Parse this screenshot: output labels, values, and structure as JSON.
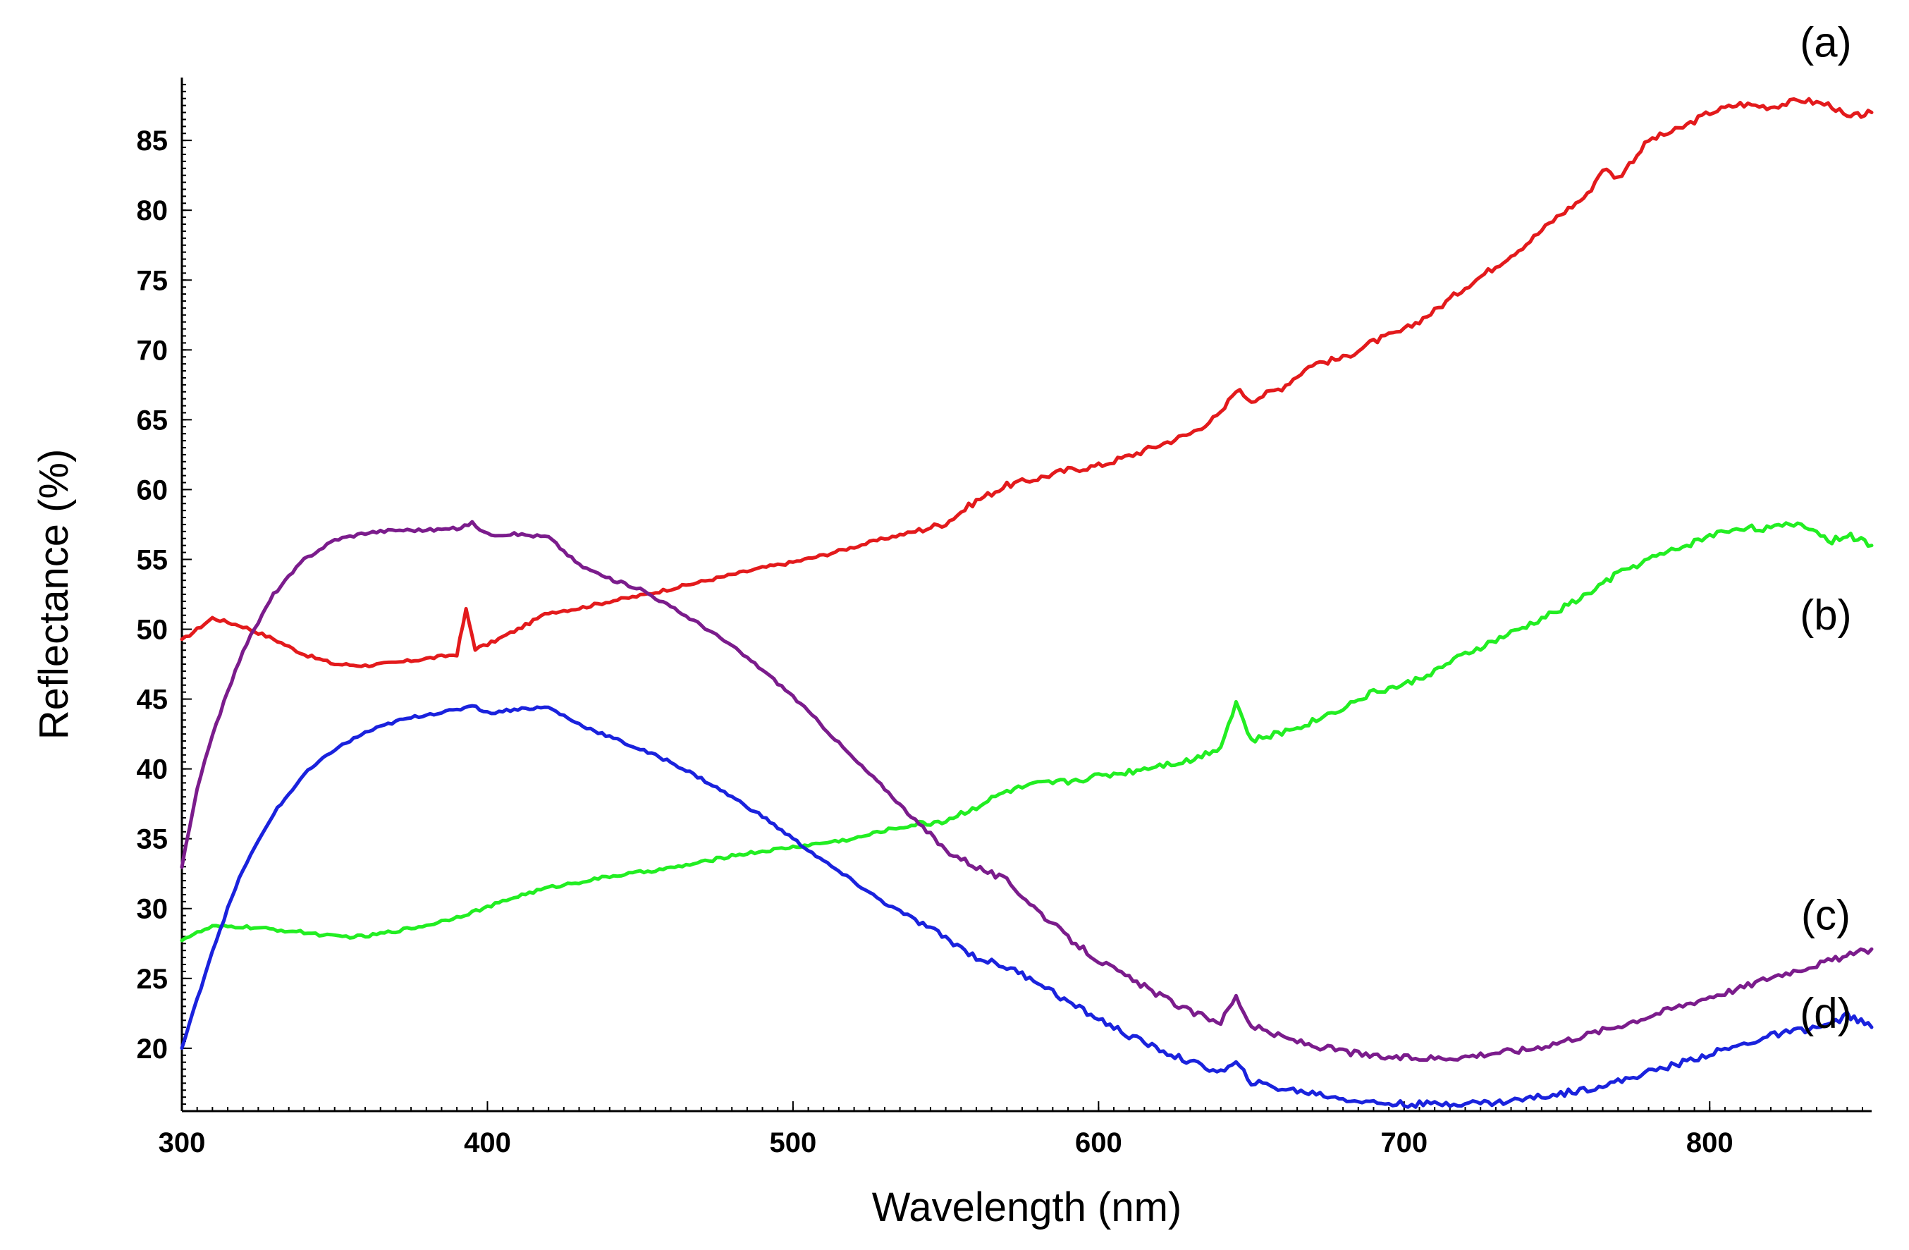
{
  "chart_data": {
    "type": "line",
    "title": "",
    "xlabel": "Wavelength (nm)",
    "ylabel": "Reflectance (%)",
    "xlim": [
      300,
      853
    ],
    "ylim": [
      15.5,
      89.5
    ],
    "xticks": [
      300,
      400,
      500,
      600,
      700,
      800
    ],
    "yticks": [
      20,
      25,
      30,
      35,
      40,
      45,
      50,
      55,
      60,
      65,
      70,
      75,
      80,
      85
    ],
    "series": [
      {
        "name": "(a)",
        "color": "#e31a1c",
        "points": [
          [
            300,
            49.2
          ],
          [
            310,
            50.8
          ],
          [
            320,
            50.2
          ],
          [
            330,
            49.3
          ],
          [
            340,
            48.2
          ],
          [
            350,
            47.5
          ],
          [
            360,
            47.4
          ],
          [
            370,
            47.6
          ],
          [
            380,
            47.9
          ],
          [
            390,
            48.2
          ],
          [
            393,
            51.4
          ],
          [
            396,
            48.6
          ],
          [
            400,
            48.9
          ],
          [
            410,
            50.0
          ],
          [
            420,
            51.2
          ],
          [
            430,
            51.5
          ],
          [
            440,
            52.0
          ],
          [
            450,
            52.4
          ],
          [
            460,
            52.9
          ],
          [
            470,
            53.4
          ],
          [
            480,
            53.9
          ],
          [
            490,
            54.4
          ],
          [
            500,
            54.8
          ],
          [
            510,
            55.3
          ],
          [
            520,
            55.9
          ],
          [
            530,
            56.5
          ],
          [
            540,
            57.0
          ],
          [
            550,
            57.6
          ],
          [
            560,
            59.2
          ],
          [
            570,
            60.3
          ],
          [
            580,
            60.8
          ],
          [
            590,
            61.4
          ],
          [
            600,
            61.7
          ],
          [
            610,
            62.4
          ],
          [
            620,
            63.2
          ],
          [
            630,
            64.0
          ],
          [
            640,
            65.4
          ],
          [
            645,
            67.2
          ],
          [
            650,
            66.4
          ],
          [
            660,
            67.3
          ],
          [
            670,
            69.0
          ],
          [
            680,
            69.4
          ],
          [
            690,
            70.6
          ],
          [
            700,
            71.4
          ],
          [
            710,
            72.8
          ],
          [
            720,
            74.5
          ],
          [
            730,
            76.0
          ],
          [
            740,
            77.6
          ],
          [
            750,
            79.5
          ],
          [
            760,
            81.1
          ],
          [
            765,
            83.0
          ],
          [
            770,
            82.3
          ],
          [
            780,
            85.0
          ],
          [
            790,
            85.8
          ],
          [
            800,
            87.0
          ],
          [
            810,
            87.6
          ],
          [
            820,
            87.4
          ],
          [
            830,
            87.9
          ],
          [
            840,
            87.5
          ],
          [
            845,
            86.6
          ],
          [
            853,
            87.0
          ]
        ]
      },
      {
        "name": "(b)",
        "color": "#22ee22",
        "points": [
          [
            300,
            27.8
          ],
          [
            310,
            28.7
          ],
          [
            320,
            28.7
          ],
          [
            330,
            28.5
          ],
          [
            340,
            28.3
          ],
          [
            350,
            28.0
          ],
          [
            360,
            28.0
          ],
          [
            370,
            28.4
          ],
          [
            380,
            28.8
          ],
          [
            390,
            29.4
          ],
          [
            400,
            30.1
          ],
          [
            410,
            30.9
          ],
          [
            420,
            31.5
          ],
          [
            430,
            31.9
          ],
          [
            440,
            32.3
          ],
          [
            450,
            32.6
          ],
          [
            460,
            32.9
          ],
          [
            470,
            33.3
          ],
          [
            480,
            33.8
          ],
          [
            490,
            34.1
          ],
          [
            500,
            34.4
          ],
          [
            510,
            34.7
          ],
          [
            520,
            35.0
          ],
          [
            530,
            35.6
          ],
          [
            540,
            36.0
          ],
          [
            550,
            36.3
          ],
          [
            560,
            37.3
          ],
          [
            570,
            38.4
          ],
          [
            580,
            38.9
          ],
          [
            590,
            39.1
          ],
          [
            600,
            39.5
          ],
          [
            610,
            39.8
          ],
          [
            620,
            40.3
          ],
          [
            630,
            40.6
          ],
          [
            640,
            41.6
          ],
          [
            645,
            44.8
          ],
          [
            650,
            42.0
          ],
          [
            660,
            42.6
          ],
          [
            670,
            43.4
          ],
          [
            680,
            44.4
          ],
          [
            690,
            45.5
          ],
          [
            700,
            46.0
          ],
          [
            710,
            47.0
          ],
          [
            720,
            48.2
          ],
          [
            730,
            49.2
          ],
          [
            740,
            50.2
          ],
          [
            750,
            51.3
          ],
          [
            760,
            52.5
          ],
          [
            770,
            54.0
          ],
          [
            780,
            55.0
          ],
          [
            790,
            55.8
          ],
          [
            800,
            56.7
          ],
          [
            810,
            57.3
          ],
          [
            820,
            57.2
          ],
          [
            830,
            57.6
          ],
          [
            840,
            56.3
          ],
          [
            845,
            56.8
          ],
          [
            853,
            56.0
          ]
        ]
      },
      {
        "name": "(c)",
        "color": "#7b1c8c",
        "points": [
          [
            300,
            33.0
          ],
          [
            305,
            38.5
          ],
          [
            310,
            42.5
          ],
          [
            315,
            45.5
          ],
          [
            320,
            48.5
          ],
          [
            330,
            52.5
          ],
          [
            340,
            55.0
          ],
          [
            350,
            56.4
          ],
          [
            360,
            56.9
          ],
          [
            370,
            57.1
          ],
          [
            380,
            57.1
          ],
          [
            390,
            57.2
          ],
          [
            395,
            57.6
          ],
          [
            400,
            56.8
          ],
          [
            410,
            56.8
          ],
          [
            420,
            56.6
          ],
          [
            430,
            54.6
          ],
          [
            440,
            53.6
          ],
          [
            450,
            52.9
          ],
          [
            460,
            51.6
          ],
          [
            470,
            50.3
          ],
          [
            480,
            48.8
          ],
          [
            490,
            47.1
          ],
          [
            500,
            45.2
          ],
          [
            510,
            43.0
          ],
          [
            520,
            40.7
          ],
          [
            530,
            38.6
          ],
          [
            540,
            36.3
          ],
          [
            550,
            34.2
          ],
          [
            560,
            33.0
          ],
          [
            570,
            32.0
          ],
          [
            580,
            29.9
          ],
          [
            590,
            27.9
          ],
          [
            600,
            26.3
          ],
          [
            610,
            25.0
          ],
          [
            620,
            23.8
          ],
          [
            630,
            22.6
          ],
          [
            640,
            21.9
          ],
          [
            645,
            23.7
          ],
          [
            650,
            21.6
          ],
          [
            660,
            20.8
          ],
          [
            670,
            20.2
          ],
          [
            680,
            19.8
          ],
          [
            690,
            19.4
          ],
          [
            700,
            19.3
          ],
          [
            710,
            19.3
          ],
          [
            720,
            19.4
          ],
          [
            730,
            19.7
          ],
          [
            740,
            19.9
          ],
          [
            750,
            20.4
          ],
          [
            760,
            21.0
          ],
          [
            770,
            21.6
          ],
          [
            780,
            22.3
          ],
          [
            790,
            23.0
          ],
          [
            800,
            23.7
          ],
          [
            810,
            24.3
          ],
          [
            820,
            25.1
          ],
          [
            830,
            25.7
          ],
          [
            840,
            26.3
          ],
          [
            853,
            27.1
          ]
        ]
      },
      {
        "name": "(d)",
        "color": "#1a22dd",
        "points": [
          [
            300,
            20.0
          ],
          [
            305,
            23.5
          ],
          [
            310,
            27.0
          ],
          [
            315,
            30.0
          ],
          [
            320,
            32.8
          ],
          [
            330,
            36.8
          ],
          [
            340,
            39.6
          ],
          [
            350,
            41.4
          ],
          [
            360,
            42.6
          ],
          [
            370,
            43.4
          ],
          [
            380,
            43.9
          ],
          [
            390,
            44.2
          ],
          [
            395,
            44.6
          ],
          [
            400,
            44.0
          ],
          [
            410,
            44.3
          ],
          [
            420,
            44.4
          ],
          [
            430,
            43.2
          ],
          [
            440,
            42.3
          ],
          [
            450,
            41.4
          ],
          [
            460,
            40.5
          ],
          [
            470,
            39.3
          ],
          [
            480,
            38.0
          ],
          [
            490,
            36.6
          ],
          [
            500,
            35.0
          ],
          [
            510,
            33.4
          ],
          [
            520,
            31.9
          ],
          [
            530,
            30.4
          ],
          [
            540,
            29.2
          ],
          [
            550,
            27.9
          ],
          [
            560,
            26.5
          ],
          [
            570,
            25.8
          ],
          [
            580,
            24.8
          ],
          [
            590,
            23.3
          ],
          [
            600,
            22.1
          ],
          [
            610,
            20.9
          ],
          [
            620,
            19.9
          ],
          [
            630,
            19.0
          ],
          [
            640,
            18.3
          ],
          [
            645,
            18.9
          ],
          [
            650,
            17.6
          ],
          [
            660,
            17.1
          ],
          [
            670,
            16.8
          ],
          [
            680,
            16.4
          ],
          [
            690,
            16.1
          ],
          [
            700,
            16.0
          ],
          [
            710,
            16.0
          ],
          [
            720,
            16.1
          ],
          [
            730,
            16.1
          ],
          [
            740,
            16.4
          ],
          [
            750,
            16.7
          ],
          [
            760,
            17.1
          ],
          [
            770,
            17.6
          ],
          [
            780,
            18.3
          ],
          [
            790,
            18.9
          ],
          [
            800,
            19.6
          ],
          [
            810,
            20.2
          ],
          [
            820,
            20.9
          ],
          [
            830,
            21.3
          ],
          [
            840,
            21.7
          ],
          [
            845,
            22.4
          ],
          [
            853,
            21.5
          ]
        ]
      }
    ],
    "annotations": [
      {
        "text": "(a)",
        "x": 838,
        "y": 92.0
      },
      {
        "text": "(b)",
        "x": 838,
        "y": 51.0
      },
      {
        "text": "(c)",
        "x": 838,
        "y": 29.5
      },
      {
        "text": "(d)",
        "x": 838,
        "y": 22.5
      }
    ]
  }
}
